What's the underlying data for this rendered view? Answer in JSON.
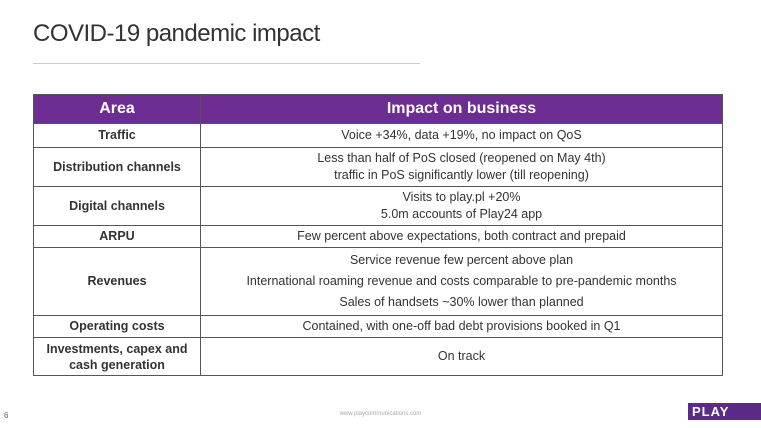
{
  "title": "COVID-19 pandemic impact",
  "table": {
    "headers": [
      "Area",
      "Impact on business"
    ],
    "rows": [
      {
        "area": "Traffic",
        "impact": [
          "Voice +34%, data +19%, no impact on QoS"
        ]
      },
      {
        "area": "Distribution channels",
        "impact": [
          "Less than half of PoS closed (reopened on May 4th)",
          "traffic in PoS significantly lower (till reopening)"
        ]
      },
      {
        "area": "Digital channels",
        "impact": [
          "Visits to play.pl +20%",
          "5.0m accounts of Play24 app"
        ]
      },
      {
        "area": "ARPU",
        "impact": [
          "Few percent above expectations, both contract and prepaid"
        ]
      },
      {
        "area": "Revenues",
        "impact": [
          "Service revenue few percent above plan",
          "International roaming revenue and costs comparable to pre-pandemic months",
          "Sales of handsets ~30% lower than planned"
        ]
      },
      {
        "area": "Operating costs",
        "impact": [
          "Contained, with one-off bad debt provisions booked in Q1"
        ]
      },
      {
        "area": "Investments, capex and cash generation",
        "impact": [
          "On track"
        ]
      }
    ]
  },
  "footer": {
    "page": "6",
    "url": "www.playcommunications.com",
    "logo": "PLAY"
  },
  "colors": {
    "header": "#6c2c91",
    "logo": "#5b2a86"
  }
}
